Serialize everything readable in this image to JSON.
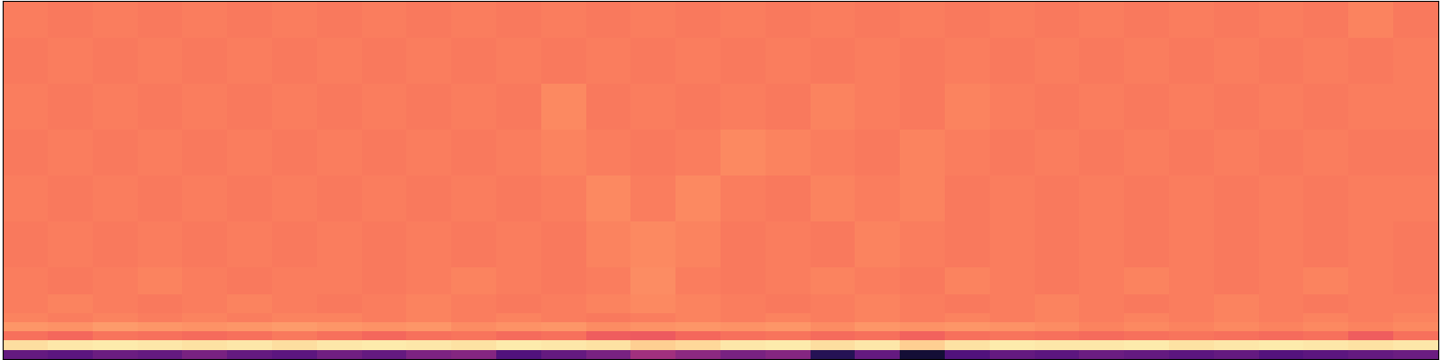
{
  "chart_data": {
    "type": "heatmap",
    "color": "magma",
    "tick_labels": false,
    "xlim": [
      0,
      32
    ],
    "ylim": [
      0,
      39
    ],
    "xticks": [],
    "yticks": [],
    "color_range": [
      0,
      1
    ],
    "x": [
      0,
      1,
      2,
      3,
      4,
      5,
      6,
      7,
      8,
      9,
      10,
      11,
      12,
      13,
      14,
      15,
      16,
      17,
      18,
      19,
      20,
      21,
      22,
      23,
      24,
      25,
      26,
      27,
      28,
      29,
      30,
      31,
      32
    ],
    "y": [
      0,
      1,
      2,
      3,
      4,
      5,
      7,
      10,
      15,
      20,
      25,
      30,
      35,
      39
    ],
    "cells": [
      [
        0.3,
        0.28,
        0.32,
        0.3,
        0.35,
        0.3,
        0.28,
        0.33,
        0.3,
        0.36,
        0.38,
        0.25,
        0.3,
        0.35,
        0.45,
        0.4,
        0.35,
        0.38,
        0.15,
        0.3,
        0.1,
        0.25,
        0.3,
        0.28,
        0.32,
        0.3,
        0.28,
        0.3,
        0.26,
        0.28,
        0.3,
        0.32
      ],
      [
        0.93,
        0.95,
        0.96,
        0.95,
        0.94,
        0.95,
        0.93,
        0.95,
        0.96,
        0.95,
        0.94,
        0.96,
        0.95,
        0.94,
        0.9,
        0.92,
        0.95,
        0.96,
        0.93,
        0.95,
        0.9,
        0.94,
        0.96,
        0.95,
        0.95,
        0.96,
        0.94,
        0.95,
        0.96,
        0.95,
        0.94,
        0.95
      ],
      [
        0.7,
        0.68,
        0.71,
        0.7,
        0.69,
        0.7,
        0.72,
        0.7,
        0.68,
        0.7,
        0.71,
        0.69,
        0.7,
        0.66,
        0.65,
        0.68,
        0.7,
        0.71,
        0.69,
        0.7,
        0.67,
        0.7,
        0.71,
        0.7,
        0.69,
        0.7,
        0.71,
        0.7,
        0.69,
        0.7,
        0.66,
        0.7
      ],
      [
        0.78,
        0.77,
        0.79,
        0.78,
        0.77,
        0.78,
        0.79,
        0.78,
        0.77,
        0.78,
        0.76,
        0.77,
        0.78,
        0.76,
        0.77,
        0.78,
        0.77,
        0.78,
        0.76,
        0.78,
        0.77,
        0.78,
        0.77,
        0.76,
        0.74,
        0.75,
        0.74,
        0.75,
        0.74,
        0.75,
        0.74,
        0.75
      ],
      [
        0.74,
        0.73,
        0.74,
        0.73,
        0.74,
        0.73,
        0.74,
        0.74,
        0.73,
        0.74,
        0.73,
        0.74,
        0.73,
        0.72,
        0.73,
        0.74,
        0.73,
        0.74,
        0.73,
        0.74,
        0.73,
        0.74,
        0.73,
        0.74,
        0.73,
        0.74,
        0.73,
        0.74,
        0.73,
        0.74,
        0.73,
        0.74
      ],
      [
        0.73,
        0.74,
        0.73,
        0.72,
        0.73,
        0.74,
        0.73,
        0.72,
        0.73,
        0.74,
        0.73,
        0.72,
        0.73,
        0.74,
        0.75,
        0.74,
        0.73,
        0.72,
        0.73,
        0.74,
        0.73,
        0.72,
        0.73,
        0.74,
        0.73,
        0.72,
        0.73,
        0.74,
        0.73,
        0.72,
        0.73,
        0.73
      ],
      [
        0.73,
        0.72,
        0.73,
        0.74,
        0.73,
        0.72,
        0.73,
        0.73,
        0.72,
        0.73,
        0.74,
        0.73,
        0.72,
        0.73,
        0.76,
        0.73,
        0.72,
        0.73,
        0.74,
        0.73,
        0.72,
        0.74,
        0.73,
        0.72,
        0.73,
        0.74,
        0.73,
        0.72,
        0.73,
        0.74,
        0.73,
        0.72
      ],
      [
        0.72,
        0.73,
        0.72,
        0.73,
        0.72,
        0.73,
        0.72,
        0.73,
        0.72,
        0.73,
        0.72,
        0.73,
        0.72,
        0.74,
        0.75,
        0.74,
        0.72,
        0.73,
        0.72,
        0.74,
        0.73,
        0.72,
        0.73,
        0.72,
        0.73,
        0.72,
        0.73,
        0.72,
        0.73,
        0.72,
        0.73,
        0.72
      ],
      [
        0.73,
        0.72,
        0.73,
        0.72,
        0.73,
        0.72,
        0.73,
        0.72,
        0.73,
        0.72,
        0.73,
        0.72,
        0.73,
        0.75,
        0.73,
        0.75,
        0.73,
        0.72,
        0.74,
        0.73,
        0.74,
        0.72,
        0.73,
        0.72,
        0.73,
        0.72,
        0.73,
        0.72,
        0.73,
        0.72,
        0.73,
        0.73
      ],
      [
        0.72,
        0.73,
        0.72,
        0.73,
        0.72,
        0.73,
        0.72,
        0.73,
        0.72,
        0.73,
        0.72,
        0.73,
        0.74,
        0.73,
        0.72,
        0.73,
        0.75,
        0.74,
        0.73,
        0.72,
        0.74,
        0.73,
        0.72,
        0.73,
        0.72,
        0.73,
        0.72,
        0.73,
        0.72,
        0.73,
        0.72,
        0.72
      ],
      [
        0.73,
        0.72,
        0.73,
        0.72,
        0.73,
        0.72,
        0.73,
        0.72,
        0.73,
        0.72,
        0.73,
        0.72,
        0.75,
        0.72,
        0.73,
        0.72,
        0.73,
        0.72,
        0.74,
        0.73,
        0.72,
        0.74,
        0.73,
        0.72,
        0.73,
        0.72,
        0.73,
        0.72,
        0.73,
        0.72,
        0.73,
        0.73
      ],
      [
        0.72,
        0.73,
        0.72,
        0.73,
        0.72,
        0.73,
        0.72,
        0.73,
        0.72,
        0.73,
        0.72,
        0.73,
        0.72,
        0.73,
        0.72,
        0.73,
        0.72,
        0.73,
        0.72,
        0.73,
        0.72,
        0.73,
        0.72,
        0.73,
        0.72,
        0.73,
        0.72,
        0.73,
        0.72,
        0.73,
        0.72,
        0.73
      ],
      [
        0.73,
        0.72,
        0.73,
        0.72,
        0.73,
        0.72,
        0.73,
        0.72,
        0.73,
        0.72,
        0.73,
        0.72,
        0.73,
        0.72,
        0.73,
        0.72,
        0.73,
        0.72,
        0.73,
        0.72,
        0.73,
        0.72,
        0.73,
        0.72,
        0.73,
        0.72,
        0.73,
        0.72,
        0.73,
        0.72,
        0.74,
        0.72
      ]
    ]
  }
}
